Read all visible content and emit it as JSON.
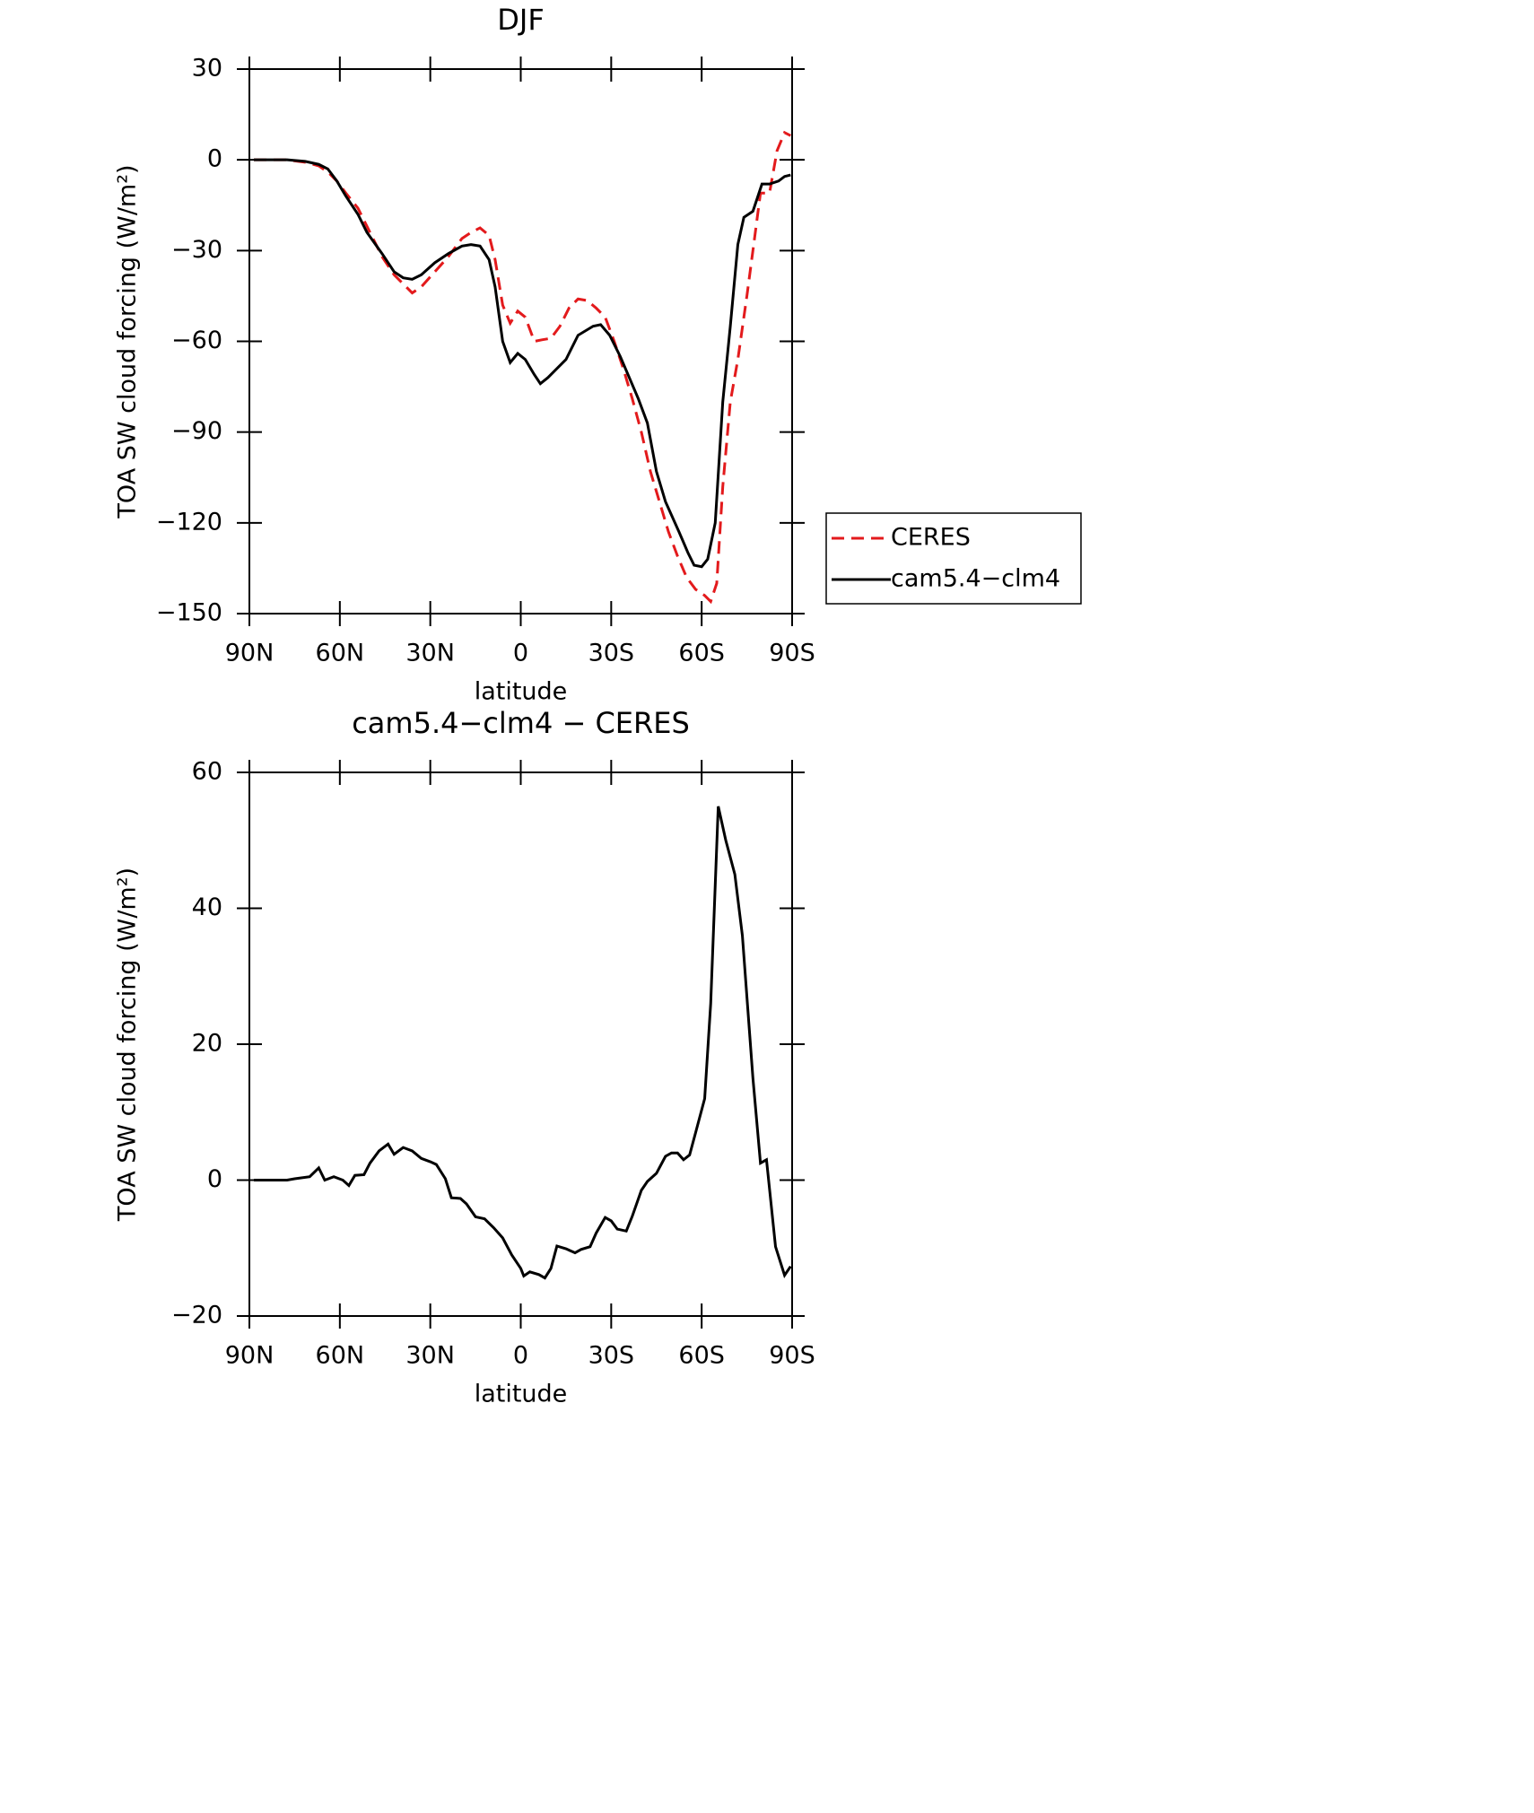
{
  "chart_data": [
    {
      "type": "line",
      "title": "DJF",
      "xlabel": "latitude",
      "ylabel": "TOA SW cloud forcing (W/m²)",
      "xlim": [
        90,
        -90
      ],
      "ylim": [
        -150,
        30
      ],
      "xticks": [
        {
          "value": 90,
          "label": "90N"
        },
        {
          "value": 60,
          "label": "60N"
        },
        {
          "value": 30,
          "label": "30N"
        },
        0,
        {
          "value": -30,
          "label": "30S"
        },
        {
          "value": -60,
          "label": "60S"
        },
        {
          "value": -90,
          "label": "90S"
        }
      ],
      "yticks": [
        {
          "value": -150,
          "label": "−150"
        },
        {
          "value": -120,
          "label": "−120"
        },
        {
          "value": -90,
          "label": "−90"
        },
        {
          "value": -60,
          "label": "−60"
        },
        {
          "value": -30,
          "label": "−30"
        },
        0,
        30
      ],
      "legend": "right",
      "series": [
        {
          "name": "CERES",
          "color": "#e31a1c",
          "dash": true,
          "x": [
            88.5,
            77.5,
            71.5,
            67,
            64,
            61,
            58,
            54,
            51,
            46,
            42,
            39,
            36,
            33,
            28.5,
            24,
            19.5,
            16.5,
            13.5,
            10.5,
            8.5,
            6,
            3.5,
            1,
            -1.5,
            -4.5,
            -7,
            -10,
            -13,
            -16,
            -19,
            -22,
            -25,
            -28,
            -31,
            -34,
            -37,
            -40,
            -43,
            -46,
            -49,
            -52,
            -55,
            -58,
            -61,
            -63,
            -65,
            -67,
            -69.5,
            -72,
            -75,
            -77,
            -79.5,
            -82.5,
            -85,
            -87.5,
            -89.5
          ],
          "values": [
            0,
            0,
            -0.8,
            -2,
            -4,
            -7,
            -11,
            -16,
            -22,
            -32,
            -38,
            -41,
            -44,
            -42,
            -37,
            -32,
            -26,
            -24,
            -22.5,
            -25,
            -33,
            -48,
            -54,
            -50,
            -52,
            -60,
            -59.5,
            -59,
            -55,
            -49,
            -46,
            -46.5,
            -49,
            -52,
            -60,
            -69,
            -79,
            -90,
            -103,
            -113,
            -123,
            -131,
            -138,
            -142,
            -144,
            -146,
            -140,
            -108,
            -80,
            -66,
            -45,
            -30,
            -11,
            -11,
            3,
            9,
            8
          ]
        },
        {
          "name": "cam5.4−clm4",
          "color": "#000000",
          "dash": false,
          "x": [
            88.5,
            83,
            77.5,
            71.5,
            67,
            64,
            61,
            58,
            54,
            51,
            46,
            42,
            39,
            36,
            33,
            28.5,
            24,
            19.5,
            16.5,
            13.5,
            10.5,
            8.5,
            6,
            3.5,
            1,
            -1.5,
            -4.5,
            -6.5,
            -9,
            -12,
            -15,
            -19,
            -24,
            -26.5,
            -29.5,
            -33,
            -36,
            -39,
            -42,
            -45,
            -48,
            -52.5,
            -55.5,
            -57.5,
            -60,
            -62,
            -64.5,
            -67,
            -69.5,
            -72,
            -74,
            -77,
            -80,
            -82.5,
            -85.5,
            -87.5,
            -89.5
          ],
          "values": [
            0,
            0,
            0,
            -0.5,
            -1.5,
            -3,
            -7,
            -12,
            -18,
            -24,
            -31,
            -37,
            -39,
            -39.5,
            -38,
            -34,
            -31,
            -28.5,
            -28,
            -28.5,
            -33,
            -42,
            -60,
            -67,
            -64,
            -66,
            -71,
            -74,
            -72,
            -69,
            -66,
            -58,
            -55,
            -54.5,
            -58,
            -65,
            -72,
            -79,
            -87,
            -103,
            -113,
            -123,
            -130,
            -134,
            -134.5,
            -132,
            -120,
            -80,
            -55,
            -28,
            -19,
            -17,
            -8,
            -8,
            -7,
            -5.5,
            -5
          ]
        }
      ]
    },
    {
      "type": "line",
      "title": "cam5.4−clm4 − CERES",
      "xlabel": "latitude",
      "ylabel": "TOA SW cloud forcing (W/m²)",
      "xlim": [
        90,
        -90
      ],
      "ylim": [
        -20,
        60
      ],
      "xticks": [
        {
          "value": 90,
          "label": "90N"
        },
        {
          "value": 60,
          "label": "60N"
        },
        {
          "value": 30,
          "label": "30N"
        },
        0,
        {
          "value": -30,
          "label": "30S"
        },
        {
          "value": -60,
          "label": "60S"
        },
        {
          "value": -90,
          "label": "90S"
        }
      ],
      "yticks": [
        {
          "value": -20,
          "label": "−20"
        },
        0,
        20,
        40,
        60
      ],
      "series": [
        {
          "color": "#000000",
          "dash": false,
          "x": [
            88.5,
            77.5,
            75,
            70,
            67,
            65,
            62,
            59,
            57,
            55,
            52,
            50,
            47,
            44,
            42,
            39,
            36,
            33,
            30,
            28,
            25,
            23,
            20,
            18,
            15,
            12,
            9,
            6,
            3,
            0,
            -1,
            -3,
            -6,
            -8,
            -10,
            -12,
            -15,
            -18,
            -20,
            -23,
            -25,
            -28,
            -30,
            -32,
            -35,
            -37,
            -40,
            -42,
            -45,
            -48,
            -50,
            -52,
            -54,
            -56,
            -58,
            -61,
            -63,
            -65.5,
            -68,
            -71,
            -73.5,
            -77,
            -79.5,
            -81.5,
            -84.5,
            -87.5,
            -89.5
          ],
          "values": [
            0,
            0,
            0.2,
            0.5,
            1.8,
            0,
            0.5,
            0,
            -0.8,
            0.7,
            0.8,
            2.5,
            4.3,
            5.3,
            3.8,
            4.8,
            4.3,
            3.2,
            2.7,
            2.3,
            0.2,
            -2.6,
            -2.7,
            -3.5,
            -5.4,
            -5.7,
            -7,
            -8.5,
            -11,
            -13,
            -14.1,
            -13.5,
            -13.9,
            -14.4,
            -13,
            -9.7,
            -10.1,
            -10.7,
            -10.2,
            -9.8,
            -7.8,
            -5.5,
            -6,
            -7.2,
            -7.5,
            -5.3,
            -1.5,
            -0.2,
            1,
            3.5,
            4,
            4,
            3,
            3.7,
            7,
            12,
            26,
            55,
            50,
            45,
            36,
            15,
            2.5,
            3,
            -9.8,
            -14,
            -12.7
          ]
        }
      ]
    }
  ]
}
